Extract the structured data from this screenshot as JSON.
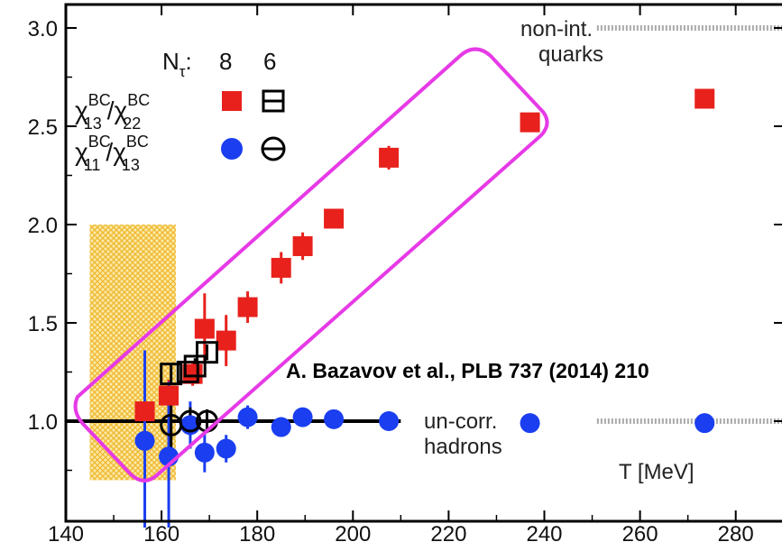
{
  "chart_data": {
    "type": "scatter",
    "xlabel": "T [MeV]",
    "ylabel": "",
    "xlim": [
      140,
      285
    ],
    "ylim": [
      0.6,
      3.05
    ],
    "x_ticks": [
      140,
      160,
      180,
      200,
      220,
      240,
      260,
      280
    ],
    "y_ticks": [
      1.0,
      1.5,
      2.0,
      2.5,
      3.0
    ],
    "x_tick_labels": [
      "140",
      "160",
      "180",
      "200",
      "220",
      "240",
      "260",
      "280"
    ],
    "y_tick_labels": [
      "1.0",
      "1.5",
      "2.0",
      "2.5",
      "3.0"
    ],
    "legend": {
      "header_symbol": "N",
      "header_sub": "τ",
      "header_suffix": ":",
      "nt8": "8",
      "nt6": "6",
      "row1_label": {
        "a": "χ",
        "a_sup": "BC",
        "a_sub": "13",
        "slash": "/",
        "b": "χ",
        "b_sup": "BC",
        "b_sub": "22"
      },
      "row2_label": {
        "a": "χ",
        "a_sup": "BC",
        "a_sub": "11",
        "slash": "/",
        "b": "χ",
        "b_sup": "BC",
        "b_sub": "13"
      },
      "placement": "top-left"
    },
    "colors": {
      "ratio13_22": "#e8211c",
      "ratio11_13": "#1a3ef0",
      "highlight": "#e63ae6",
      "band": "#f2c43c",
      "reference": "#aaaaaa",
      "axis": "#000000"
    },
    "series": [
      {
        "name": "χ13/χ22 Nτ=8",
        "marker": "filled-square",
        "color": "#e8211c",
        "points": [
          {
            "x": 156.5,
            "y": 1.05,
            "err": 0.0
          },
          {
            "x": 161.5,
            "y": 1.13,
            "err": 0.08
          },
          {
            "x": 166.5,
            "y": 1.24,
            "err": 0.06
          },
          {
            "x": 169.0,
            "y": 1.47,
            "err": 0.18
          },
          {
            "x": 173.5,
            "y": 1.41,
            "err": 0.13
          },
          {
            "x": 178.0,
            "y": 1.58,
            "err": 0.08
          },
          {
            "x": 185.0,
            "y": 1.78,
            "err": 0.08
          },
          {
            "x": 189.5,
            "y": 1.89,
            "err": 0.07
          },
          {
            "x": 196.0,
            "y": 2.03,
            "err": 0.04
          },
          {
            "x": 207.5,
            "y": 2.34,
            "err": 0.06
          },
          {
            "x": 237.0,
            "y": 2.52,
            "err": 0.04
          },
          {
            "x": 273.5,
            "y": 2.64,
            "err": 0.04
          }
        ]
      },
      {
        "name": "χ13/χ22 Nτ=6",
        "marker": "open-square",
        "color": "#000000",
        "points": [
          {
            "x": 162.0,
            "y": 1.24,
            "err": 0.05
          },
          {
            "x": 165.5,
            "y": 1.25,
            "err": 0.04
          },
          {
            "x": 167.0,
            "y": 1.28,
            "err": 0.04
          },
          {
            "x": 169.5,
            "y": 1.35,
            "err": 0.04
          }
        ]
      },
      {
        "name": "χ11/χ13 Nτ=8",
        "marker": "filled-circle",
        "color": "#1a3ef0",
        "points": [
          {
            "x": 156.5,
            "y": 0.9,
            "err": 0.46
          },
          {
            "x": 161.5,
            "y": 0.82,
            "err": 0.38
          },
          {
            "x": 166.0,
            "y": 0.98,
            "err": 0.12
          },
          {
            "x": 169.0,
            "y": 0.84,
            "err": 0.1
          },
          {
            "x": 173.5,
            "y": 0.86,
            "err": 0.07
          },
          {
            "x": 178.0,
            "y": 1.02,
            "err": 0.06
          },
          {
            "x": 185.0,
            "y": 0.97,
            "err": 0.05
          },
          {
            "x": 189.5,
            "y": 1.02,
            "err": 0.03
          },
          {
            "x": 196.0,
            "y": 1.01,
            "err": 0.02
          },
          {
            "x": 207.5,
            "y": 1.0,
            "err": 0.02
          },
          {
            "x": 237.0,
            "y": 0.99,
            "err": 0.02
          },
          {
            "x": 273.5,
            "y": 0.99,
            "err": 0.02
          }
        ]
      },
      {
        "name": "χ11/χ13 Nτ=6",
        "marker": "open-circle",
        "color": "#000000",
        "points": [
          {
            "x": 162.0,
            "y": 0.98,
            "err": 0.12
          },
          {
            "x": 166.0,
            "y": 1.0,
            "err": 0.07
          },
          {
            "x": 169.5,
            "y": 1.0,
            "err": 0.06
          }
        ]
      }
    ],
    "reference_lines": {
      "uncorrelated_hadrons": {
        "y": 1.0,
        "x_from": 140,
        "x_to": 210
      },
      "noninteracting_quarks_top": {
        "y": 3.0,
        "x_from": 251,
        "x_to": 285
      },
      "noninteracting_quarks_bottom": {
        "y": 1.0,
        "x_from": 251,
        "x_to": 285
      }
    },
    "transition_band": {
      "x_from": 145,
      "x_to": 163,
      "y_from": 0.7,
      "y_to": 2.0
    },
    "annotations": {
      "noninteracting": [
        "non-int.",
        "quarks"
      ],
      "uncorrelated": [
        "un-corr.",
        "hadrons"
      ],
      "citation": "A. Bazavov et al., PLB 737 (2014) 210"
    }
  }
}
